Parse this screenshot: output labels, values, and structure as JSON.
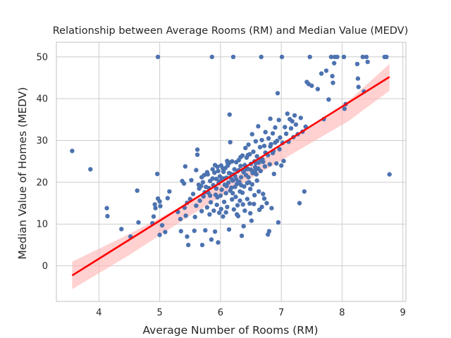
{
  "chart_data": {
    "type": "scatter",
    "title": "Relationship between Average Rooms (RM) and Median Value (MEDV)",
    "xlabel": "Average Number of Rooms (RM)",
    "ylabel": "Median Value of Homes (MEDV)",
    "xlim": [
      3.3,
      9.05
    ],
    "ylim": [
      -8.5,
      53.5
    ],
    "xticks": [
      4,
      5,
      6,
      7,
      8,
      9
    ],
    "yticks": [
      0,
      10,
      20,
      30,
      40,
      50
    ],
    "grid": true,
    "colors": {
      "points": "#4c72b0",
      "regression": "#ff0000",
      "band": "#ffb3b3",
      "grid": "#cccccc",
      "frame": "#cccccc"
    },
    "regression": {
      "x": [
        3.56,
        8.78
      ],
      "y": [
        -2.3,
        45.2
      ]
    },
    "confidence_band": {
      "x": [
        3.56,
        4.5,
        5.5,
        6.3,
        7.3,
        8.1,
        8.78
      ],
      "lower": [
        -5.6,
        2.6,
        12.0,
        19.2,
        27.8,
        34.6,
        41.9
      ],
      "upper": [
        1.0,
        7.6,
        15.3,
        21.9,
        31.5,
        39.4,
        48.3
      ]
    },
    "points": [
      [
        3.56,
        27.5
      ],
      [
        3.86,
        23.1
      ],
      [
        4.13,
        13.8
      ],
      [
        4.14,
        11.9
      ],
      [
        4.37,
        8.8
      ],
      [
        4.52,
        7.0
      ],
      [
        4.63,
        18.0
      ],
      [
        4.65,
        10.4
      ],
      [
        4.88,
        10.2
      ],
      [
        4.9,
        11.8
      ],
      [
        4.92,
        14.7
      ],
      [
        4.93,
        13.8
      ],
      [
        4.96,
        22.0
      ],
      [
        4.97,
        50.0
      ],
      [
        4.97,
        16.1
      ],
      [
        5.0,
        7.4
      ],
      [
        5.0,
        15.4
      ],
      [
        5.01,
        14.3
      ],
      [
        5.04,
        9.7
      ],
      [
        5.09,
        8.1
      ],
      [
        5.13,
        16.2
      ],
      [
        5.16,
        17.8
      ],
      [
        5.3,
        12.9
      ],
      [
        5.34,
        11.2
      ],
      [
        5.35,
        8.3
      ],
      [
        5.37,
        20.3
      ],
      [
        5.4,
        19.7
      ],
      [
        5.41,
        13.9
      ],
      [
        5.42,
        23.8
      ],
      [
        5.43,
        12.0
      ],
      [
        5.45,
        7.0
      ],
      [
        5.45,
        15.1
      ],
      [
        5.47,
        5.0
      ],
      [
        5.5,
        16.0
      ],
      [
        5.52,
        20.5
      ],
      [
        5.57,
        8.4
      ],
      [
        5.58,
        11.7
      ],
      [
        5.6,
        22.9
      ],
      [
        5.6,
        14.4
      ],
      [
        5.62,
        27.8
      ],
      [
        5.62,
        26.6
      ],
      [
        5.65,
        18.5
      ],
      [
        5.66,
        15.6
      ],
      [
        5.68,
        19.1
      ],
      [
        5.69,
        13.1
      ],
      [
        5.7,
        5.0
      ],
      [
        5.71,
        20.0
      ],
      [
        5.72,
        16.6
      ],
      [
        5.73,
        21.7
      ],
      [
        5.75,
        8.5
      ],
      [
        5.76,
        18.9
      ],
      [
        5.78,
        14.0
      ],
      [
        5.79,
        21.9
      ],
      [
        5.8,
        17.5
      ],
      [
        5.82,
        12.3
      ],
      [
        5.83,
        20.3
      ],
      [
        5.84,
        15.2
      ],
      [
        5.85,
        6.3
      ],
      [
        5.86,
        50.0
      ],
      [
        5.87,
        23.1
      ],
      [
        5.88,
        19.3
      ],
      [
        5.89,
        13.2
      ],
      [
        5.9,
        22.3
      ],
      [
        5.91,
        8.2
      ],
      [
        5.92,
        17.0
      ],
      [
        5.93,
        20.8
      ],
      [
        5.94,
        14.6
      ],
      [
        5.95,
        23.7
      ],
      [
        5.96,
        5.6
      ],
      [
        5.97,
        19.8
      ],
      [
        5.98,
        12.7
      ],
      [
        5.99,
        21.4
      ],
      [
        6.0,
        16.8
      ],
      [
        6.01,
        24.0
      ],
      [
        6.02,
        18.2
      ],
      [
        6.03,
        20.6
      ],
      [
        6.04,
        11.8
      ],
      [
        6.05,
        22.5
      ],
      [
        6.06,
        15.3
      ],
      [
        6.07,
        19.4
      ],
      [
        6.08,
        23.4
      ],
      [
        6.09,
        17.4
      ],
      [
        6.1,
        21.1
      ],
      [
        6.11,
        14.1
      ],
      [
        6.12,
        24.5
      ],
      [
        6.13,
        19.9
      ],
      [
        6.14,
        8.7
      ],
      [
        6.15,
        36.2
      ],
      [
        6.16,
        29.6
      ],
      [
        6.17,
        22.0
      ],
      [
        6.18,
        18.7
      ],
      [
        6.19,
        25.0
      ],
      [
        6.2,
        20.4
      ],
      [
        6.21,
        50.0
      ],
      [
        6.22,
        13.5
      ],
      [
        6.23,
        23.1
      ],
      [
        6.24,
        21.5
      ],
      [
        6.25,
        16.5
      ],
      [
        6.26,
        24.8
      ],
      [
        6.27,
        19.6
      ],
      [
        6.28,
        22.6
      ],
      [
        6.29,
        11.9
      ],
      [
        6.3,
        25.3
      ],
      [
        6.31,
        20.1
      ],
      [
        6.32,
        17.8
      ],
      [
        6.33,
        23.9
      ],
      [
        6.34,
        21.2
      ],
      [
        6.35,
        7.2
      ],
      [
        6.36,
        26.4
      ],
      [
        6.37,
        22.8
      ],
      [
        6.38,
        9.5
      ],
      [
        6.39,
        19.0
      ],
      [
        6.4,
        24.1
      ],
      [
        6.41,
        28.2
      ],
      [
        6.42,
        21.7
      ],
      [
        6.43,
        25.9
      ],
      [
        6.44,
        16.0
      ],
      [
        6.45,
        23.2
      ],
      [
        6.46,
        29.0
      ],
      [
        6.47,
        20.0
      ],
      [
        6.48,
        26.7
      ],
      [
        6.49,
        18.4
      ],
      [
        6.5,
        24.4
      ],
      [
        6.51,
        10.8
      ],
      [
        6.52,
        31.5
      ],
      [
        6.53,
        22.2
      ],
      [
        6.54,
        27.3
      ],
      [
        6.55,
        14.8
      ],
      [
        6.56,
        25.0
      ],
      [
        6.57,
        23.6
      ],
      [
        6.58,
        29.8
      ],
      [
        6.59,
        21.9
      ],
      [
        6.6,
        26.2
      ],
      [
        6.62,
        33.4
      ],
      [
        6.63,
        24.7
      ],
      [
        6.64,
        13.4
      ],
      [
        6.65,
        28.4
      ],
      [
        6.66,
        22.7
      ],
      [
        6.67,
        50.0
      ],
      [
        6.68,
        30.1
      ],
      [
        6.69,
        25.5
      ],
      [
        6.7,
        17.2
      ],
      [
        6.72,
        28.7
      ],
      [
        6.73,
        23.8
      ],
      [
        6.74,
        32.0
      ],
      [
        6.75,
        26.9
      ],
      [
        6.76,
        15.0
      ],
      [
        6.78,
        7.5
      ],
      [
        6.79,
        30.5
      ],
      [
        6.8,
        8.3
      ],
      [
        6.81,
        24.3
      ],
      [
        6.82,
        35.2
      ],
      [
        6.83,
        29.1
      ],
      [
        6.84,
        13.8
      ],
      [
        6.86,
        31.7
      ],
      [
        6.87,
        27.5
      ],
      [
        6.88,
        22.0
      ],
      [
        6.9,
        33.1
      ],
      [
        6.92,
        24.5
      ],
      [
        6.93,
        29.9
      ],
      [
        6.94,
        41.3
      ],
      [
        6.95,
        10.4
      ],
      [
        6.96,
        34.9
      ],
      [
        6.97,
        27.9
      ],
      [
        6.98,
        30.7
      ],
      [
        7.0,
        24.0
      ],
      [
        7.01,
        50.0
      ],
      [
        7.02,
        29.4
      ],
      [
        7.04,
        25.1
      ],
      [
        7.06,
        33.2
      ],
      [
        7.08,
        31.6
      ],
      [
        7.1,
        36.4
      ],
      [
        7.12,
        29.7
      ],
      [
        7.14,
        35.1
      ],
      [
        7.16,
        32.9
      ],
      [
        7.18,
        34.6
      ],
      [
        7.2,
        30.8
      ],
      [
        7.22,
        36.0
      ],
      [
        7.24,
        33.8
      ],
      [
        7.27,
        31.5
      ],
      [
        7.3,
        15.0
      ],
      [
        7.32,
        35.4
      ],
      [
        7.35,
        32.1
      ],
      [
        7.38,
        17.8
      ],
      [
        7.4,
        33.3
      ],
      [
        7.42,
        44.0
      ],
      [
        7.45,
        43.5
      ],
      [
        7.47,
        50.0
      ],
      [
        7.5,
        43.1
      ],
      [
        7.6,
        42.3
      ],
      [
        7.66,
        46.0
      ],
      [
        7.7,
        35.1
      ],
      [
        7.74,
        46.7
      ],
      [
        7.78,
        39.8
      ],
      [
        7.82,
        50.0
      ],
      [
        7.84,
        45.4
      ],
      [
        7.85,
        43.8
      ],
      [
        7.87,
        48.5
      ],
      [
        7.88,
        50.0
      ],
      [
        7.92,
        50.0
      ],
      [
        8.03,
        50.0
      ],
      [
        8.04,
        37.6
      ],
      [
        8.06,
        38.7
      ],
      [
        8.25,
        48.3
      ],
      [
        8.26,
        44.8
      ],
      [
        8.27,
        42.8
      ],
      [
        8.34,
        50.0
      ],
      [
        8.36,
        41.7
      ],
      [
        8.4,
        50.0
      ],
      [
        8.42,
        48.8
      ],
      [
        8.7,
        50.0
      ],
      [
        8.73,
        50.0
      ],
      [
        8.78,
        21.9
      ],
      [
        5.55,
        17.2
      ],
      [
        5.64,
        19.4
      ],
      [
        5.74,
        17.6
      ],
      [
        5.81,
        18.6
      ],
      [
        5.87,
        20.9
      ],
      [
        5.93,
        18.5
      ],
      [
        5.98,
        20.2
      ],
      [
        6.02,
        21.0
      ],
      [
        6.06,
        20.9
      ],
      [
        6.1,
        19.1
      ],
      [
        6.14,
        22.2
      ],
      [
        6.18,
        20.8
      ],
      [
        6.22,
        21.9
      ],
      [
        6.26,
        20.7
      ],
      [
        6.3,
        22.9
      ],
      [
        6.34,
        19.3
      ],
      [
        6.38,
        22.4
      ],
      [
        6.42,
        23.1
      ],
      [
        6.46,
        21.2
      ],
      [
        6.5,
        23.0
      ],
      [
        6.54,
        22.3
      ],
      [
        6.58,
        24.6
      ],
      [
        6.62,
        23.3
      ],
      [
        6.66,
        25.2
      ],
      [
        6.7,
        24.9
      ],
      [
        6.74,
        27.1
      ],
      [
        6.78,
        26.5
      ],
      [
        6.82,
        28.6
      ],
      [
        6.86,
        27.0
      ],
      [
        6.9,
        29.5
      ],
      [
        5.96,
        22.7
      ],
      [
        6.04,
        23.3
      ],
      [
        6.12,
        24.0
      ],
      [
        6.16,
        18.0
      ],
      [
        6.24,
        18.9
      ],
      [
        6.32,
        15.6
      ],
      [
        6.36,
        17.5
      ],
      [
        6.44,
        19.8
      ],
      [
        6.48,
        14.9
      ],
      [
        6.56,
        16.9
      ],
      [
        6.15,
        24.7
      ],
      [
        6.2,
        17.4
      ],
      [
        6.28,
        14.5
      ],
      [
        6.4,
        13.2
      ],
      [
        6.52,
        19.5
      ],
      [
        6.6,
        20.4
      ],
      [
        6.68,
        14.1
      ],
      [
        6.72,
        16.1
      ],
      [
        5.69,
        21.2
      ],
      [
        5.78,
        22.4
      ],
      [
        5.83,
        16.8
      ],
      [
        5.91,
        24.1
      ],
      [
        5.95,
        16.4
      ],
      [
        6.01,
        13.6
      ],
      [
        6.09,
        12.8
      ],
      [
        6.11,
        25.1
      ],
      [
        6.19,
        15.9
      ],
      [
        6.27,
        12.3
      ],
      [
        6.33,
        26.0
      ],
      [
        6.37,
        14.7
      ],
      [
        6.45,
        26.5
      ],
      [
        6.49,
        12.6
      ],
      [
        6.57,
        22.8
      ],
      [
        6.63,
        17.8
      ]
    ]
  }
}
